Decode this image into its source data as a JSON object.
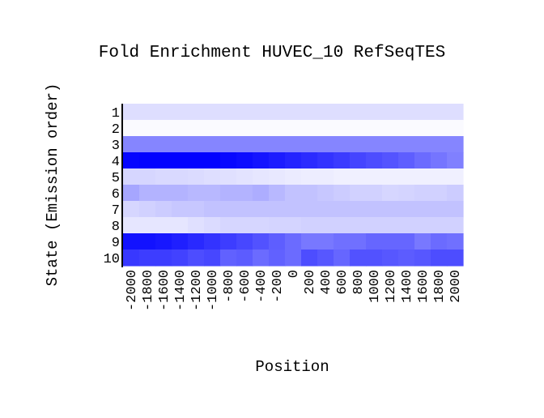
{
  "chart_data": {
    "type": "heatmap",
    "title": "Fold Enrichment HUVEC_10 RefSeqTES",
    "xlabel": "Position",
    "ylabel": "State (Emission order)",
    "x_ticks": [
      "-2000",
      "-1800",
      "-1600",
      "-1400",
      "-1200",
      "-1000",
      "-800",
      "-600",
      "-400",
      "-200",
      "0",
      "200",
      "400",
      "600",
      "800",
      "1000",
      "1200",
      "1400",
      "1600",
      "1800",
      "2000"
    ],
    "y_ticks": [
      "1",
      "2",
      "3",
      "4",
      "5",
      "6",
      "7",
      "8",
      "9",
      "10"
    ],
    "colormap": {
      "low": "#ffffff",
      "high": "#0000ff"
    },
    "values": [
      [
        0.13,
        0.13,
        0.13,
        0.13,
        0.13,
        0.13,
        0.13,
        0.13,
        0.13,
        0.13,
        0.13,
        0.13,
        0.13,
        0.13,
        0.13,
        0.13,
        0.13,
        0.13,
        0.13,
        0.13,
        0.13
      ],
      [
        0.02,
        0.02,
        0.02,
        0.02,
        0.02,
        0.02,
        0.02,
        0.02,
        0.02,
        0.02,
        0.02,
        0.02,
        0.02,
        0.02,
        0.02,
        0.02,
        0.02,
        0.02,
        0.02,
        0.02,
        0.02
      ],
      [
        0.48,
        0.48,
        0.48,
        0.48,
        0.48,
        0.48,
        0.48,
        0.48,
        0.48,
        0.48,
        0.48,
        0.48,
        0.48,
        0.48,
        0.48,
        0.48,
        0.48,
        0.48,
        0.48,
        0.48,
        0.48
      ],
      [
        0.98,
        0.99,
        0.99,
        0.99,
        0.99,
        0.99,
        0.97,
        0.95,
        0.92,
        0.89,
        0.86,
        0.83,
        0.8,
        0.77,
        0.73,
        0.7,
        0.67,
        0.63,
        0.58,
        0.54,
        0.5
      ],
      [
        0.16,
        0.16,
        0.15,
        0.15,
        0.14,
        0.13,
        0.12,
        0.11,
        0.1,
        0.09,
        0.08,
        0.07,
        0.07,
        0.06,
        0.06,
        0.06,
        0.06,
        0.06,
        0.06,
        0.06,
        0.06
      ],
      [
        0.35,
        0.3,
        0.3,
        0.3,
        0.28,
        0.28,
        0.3,
        0.3,
        0.32,
        0.28,
        0.24,
        0.24,
        0.22,
        0.2,
        0.18,
        0.18,
        0.16,
        0.17,
        0.18,
        0.18,
        0.2
      ],
      [
        0.16,
        0.18,
        0.2,
        0.22,
        0.22,
        0.24,
        0.24,
        0.24,
        0.24,
        0.24,
        0.24,
        0.24,
        0.24,
        0.24,
        0.24,
        0.24,
        0.24,
        0.24,
        0.24,
        0.24,
        0.24
      ],
      [
        0.1,
        0.1,
        0.1,
        0.1,
        0.12,
        0.14,
        0.16,
        0.16,
        0.16,
        0.17,
        0.17,
        0.18,
        0.18,
        0.18,
        0.18,
        0.18,
        0.18,
        0.18,
        0.18,
        0.18,
        0.18
      ],
      [
        0.93,
        0.93,
        0.91,
        0.88,
        0.84,
        0.8,
        0.76,
        0.72,
        0.68,
        0.63,
        0.58,
        0.53,
        0.53,
        0.56,
        0.56,
        0.6,
        0.6,
        0.6,
        0.53,
        0.58,
        0.56
      ],
      [
        0.78,
        0.76,
        0.76,
        0.74,
        0.7,
        0.72,
        0.62,
        0.64,
        0.58,
        0.62,
        0.58,
        0.7,
        0.66,
        0.6,
        0.68,
        0.68,
        0.66,
        0.64,
        0.66,
        0.7,
        0.7
      ]
    ]
  }
}
